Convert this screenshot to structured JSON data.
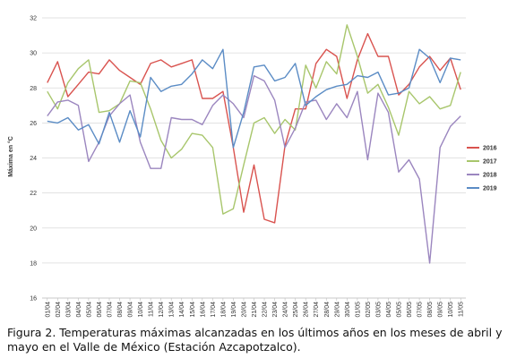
{
  "caption": "Figura 2. Temperaturas máximas alcanzadas en los últimos años en los meses de abril y mayo en el Valle de México (Estación Azcapotzalco).",
  "chart_data": {
    "type": "line",
    "title": "",
    "xlabel": "",
    "ylabel": "Máxima en °C",
    "ylim": [
      16,
      32
    ],
    "yticks": [
      16,
      18,
      20,
      22,
      24,
      26,
      28,
      30,
      32
    ],
    "grid": true,
    "legend_position": "right",
    "categories": [
      "01/04",
      "02/04",
      "03/04",
      "04/04",
      "05/04",
      "06/04",
      "07/04",
      "08/04",
      "09/04",
      "10/04",
      "11/04",
      "12/04",
      "13/04",
      "14/04",
      "15/04",
      "16/04",
      "17/04",
      "18/04",
      "19/04",
      "20/04",
      "21/04",
      "22/04",
      "23/04",
      "24/04",
      "25/04",
      "26/04",
      "27/04",
      "28/04",
      "29/04",
      "30/04",
      "01/05",
      "02/05",
      "03/05",
      "04/05",
      "05/05",
      "06/05",
      "07/05",
      "08/05",
      "09/05",
      "10/05",
      "11/05"
    ],
    "series": [
      {
        "name": "2016",
        "color": "#d9534f",
        "values": [
          28.3,
          29.5,
          27.5,
          28.2,
          28.9,
          28.8,
          29.6,
          29.0,
          28.6,
          28.2,
          29.4,
          29.6,
          29.2,
          29.4,
          29.6,
          27.4,
          27.4,
          27.8,
          24.6,
          20.9,
          23.6,
          20.5,
          20.3,
          24.7,
          26.8,
          26.8,
          29.4,
          30.2,
          29.8,
          27.4,
          29.6,
          31.1,
          29.8,
          29.8,
          27.6,
          28.2,
          29.2,
          29.8,
          29.0,
          29.7,
          27.9
        ]
      },
      {
        "name": "2017",
        "color": "#a8c66c",
        "values": [
          27.8,
          26.8,
          28.3,
          29.1,
          29.6,
          26.6,
          26.7,
          27.1,
          28.4,
          28.3,
          26.8,
          25.0,
          24.0,
          24.5,
          25.4,
          25.3,
          24.6,
          20.8,
          21.1,
          23.6,
          26.0,
          26.3,
          25.4,
          26.2,
          25.6,
          29.3,
          28.0,
          29.5,
          28.8,
          31.6,
          29.8,
          27.7,
          28.2,
          26.9,
          25.3,
          27.8,
          27.1,
          27.5,
          26.8,
          27.0,
          28.9
        ]
      },
      {
        "name": "2018",
        "color": "#9b86bf",
        "values": [
          26.4,
          27.2,
          27.3,
          27.0,
          23.8,
          24.9,
          26.4,
          27.1,
          27.6,
          24.9,
          23.4,
          23.4,
          26.3,
          26.2,
          26.2,
          25.9,
          27.0,
          27.6,
          27.1,
          26.3,
          28.7,
          28.4,
          27.3,
          24.6,
          25.7,
          27.2,
          27.3,
          26.2,
          27.1,
          26.3,
          27.8,
          23.9,
          27.7,
          26.6,
          23.2,
          23.9,
          22.8,
          18.0,
          24.6,
          25.8,
          26.4
        ]
      },
      {
        "name": "2019",
        "color": "#5b8cc5",
        "values": [
          26.1,
          26.0,
          26.3,
          25.6,
          25.9,
          24.8,
          26.6,
          24.9,
          26.7,
          25.2,
          28.6,
          27.8,
          28.1,
          28.2,
          28.8,
          29.6,
          29.1,
          30.2,
          24.6,
          26.6,
          29.2,
          29.3,
          28.4,
          28.6,
          29.4,
          27.0,
          27.5,
          27.9,
          28.1,
          28.2,
          28.7,
          28.6,
          28.9,
          27.6,
          27.7,
          28.0,
          30.2,
          29.7,
          28.3,
          29.7,
          29.6
        ]
      }
    ]
  }
}
